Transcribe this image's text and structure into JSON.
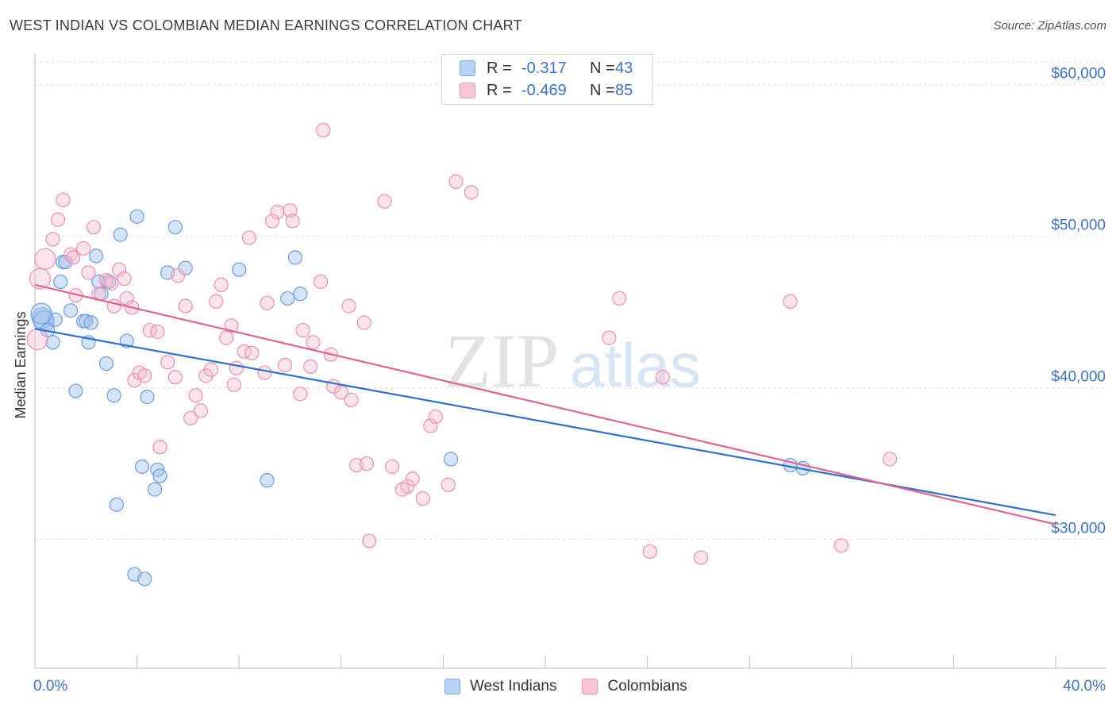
{
  "title": "WEST INDIAN VS COLOMBIAN MEDIAN EARNINGS CORRELATION CHART",
  "source": "Source: ZipAtlas.com",
  "watermark": {
    "zip": "ZIP",
    "atlas": "atlas"
  },
  "legend_top": [
    {
      "r_label": "R =",
      "r_value": "-0.317",
      "n_label": "N =",
      "n_value": "43",
      "fill": "#b9d1f2",
      "stroke": "#7aa7e6"
    },
    {
      "r_label": "R =",
      "r_value": "-0.469",
      "n_label": "N =",
      "n_value": "85",
      "fill": "#f9c6d6",
      "stroke": "#ef94b3"
    }
  ],
  "legend_bottom": [
    {
      "label": "West Indians",
      "fill": "#b9d1f2",
      "stroke": "#7aa7e6"
    },
    {
      "label": "Colombians",
      "fill": "#f9c6d6",
      "stroke": "#ef94b3"
    }
  ],
  "chart_data": {
    "type": "scatter",
    "ylabel": "Median Earnings",
    "xlim": [
      0,
      40
    ],
    "ylim": [
      21500,
      61500
    ],
    "x_tick_labels": [
      "0.0%",
      "40.0%"
    ],
    "y_ticks": [
      {
        "value": 30000,
        "label": "$30,000"
      },
      {
        "value": 40000,
        "label": "$40,000"
      },
      {
        "value": 50000,
        "label": "$50,000"
      },
      {
        "value": 60000,
        "label": "$60,000"
      }
    ],
    "grid": true,
    "legend_position": "top-center",
    "series": [
      {
        "name": "West Indians",
        "color": "#6a9ee0",
        "fill": "rgba(160,193,238,0.45)",
        "line_color": "#2f6fcf",
        "trend": [
          [
            0,
            43900
          ],
          [
            40,
            31600
          ]
        ],
        "points": [
          [
            0.3,
            44600
          ],
          [
            0.35,
            44400
          ],
          [
            0.5,
            43800
          ],
          [
            0.7,
            43000
          ],
          [
            0.8,
            44500
          ],
          [
            1.0,
            47000
          ],
          [
            1.1,
            48300
          ],
          [
            1.4,
            45100
          ],
          [
            1.6,
            39800
          ],
          [
            1.9,
            44400
          ],
          [
            2.0,
            44400
          ],
          [
            2.1,
            43000
          ],
          [
            2.2,
            44300
          ],
          [
            2.4,
            48700
          ],
          [
            2.5,
            47000
          ],
          [
            2.6,
            46200
          ],
          [
            2.8,
            41600
          ],
          [
            2.9,
            47000
          ],
          [
            3.1,
            39500
          ],
          [
            3.2,
            32300
          ],
          [
            3.35,
            50100
          ],
          [
            3.6,
            43100
          ],
          [
            3.9,
            27700
          ],
          [
            4.0,
            51300
          ],
          [
            4.2,
            34800
          ],
          [
            4.3,
            27400
          ],
          [
            4.4,
            39400
          ],
          [
            4.7,
            33300
          ],
          [
            4.8,
            34600
          ],
          [
            4.9,
            34200
          ],
          [
            5.2,
            47600
          ],
          [
            5.5,
            50600
          ],
          [
            5.9,
            47900
          ],
          [
            8.0,
            47800
          ],
          [
            9.1,
            33900
          ],
          [
            9.9,
            45900
          ],
          [
            10.2,
            48600
          ],
          [
            10.4,
            46200
          ],
          [
            16.3,
            35300
          ],
          [
            29.6,
            34900
          ],
          [
            30.1,
            34700
          ],
          [
            0.25,
            44900
          ],
          [
            1.2,
            48300
          ]
        ]
      },
      {
        "name": "Colombians",
        "color": "#ee8fb0",
        "fill": "rgba(246,184,205,0.40)",
        "line_color": "#e0648f",
        "trend": [
          [
            0,
            46800
          ],
          [
            40,
            31000
          ]
        ],
        "points": [
          [
            0.1,
            43200
          ],
          [
            0.2,
            47200
          ],
          [
            0.4,
            48500
          ],
          [
            0.7,
            49800
          ],
          [
            0.9,
            51100
          ],
          [
            1.1,
            52400
          ],
          [
            1.4,
            48800
          ],
          [
            1.6,
            46100
          ],
          [
            1.9,
            49200
          ],
          [
            2.1,
            47600
          ],
          [
            2.3,
            50600
          ],
          [
            2.5,
            46200
          ],
          [
            2.8,
            47100
          ],
          [
            3.0,
            46900
          ],
          [
            3.1,
            45400
          ],
          [
            3.3,
            47800
          ],
          [
            3.5,
            47200
          ],
          [
            3.6,
            45900
          ],
          [
            3.8,
            45300
          ],
          [
            3.9,
            40500
          ],
          [
            4.1,
            41000
          ],
          [
            4.3,
            40800
          ],
          [
            4.5,
            43800
          ],
          [
            4.8,
            43700
          ],
          [
            4.9,
            36100
          ],
          [
            5.2,
            41700
          ],
          [
            5.5,
            40700
          ],
          [
            5.6,
            47400
          ],
          [
            5.9,
            45400
          ],
          [
            6.1,
            38000
          ],
          [
            6.3,
            39500
          ],
          [
            6.5,
            38500
          ],
          [
            6.7,
            40800
          ],
          [
            6.9,
            41200
          ],
          [
            7.1,
            45700
          ],
          [
            7.3,
            46800
          ],
          [
            7.5,
            43300
          ],
          [
            7.7,
            44100
          ],
          [
            7.8,
            40200
          ],
          [
            7.9,
            41300
          ],
          [
            8.2,
            42400
          ],
          [
            8.4,
            49900
          ],
          [
            8.5,
            42300
          ],
          [
            9.0,
            41000
          ],
          [
            9.1,
            45600
          ],
          [
            9.3,
            51000
          ],
          [
            9.5,
            51600
          ],
          [
            9.8,
            41500
          ],
          [
            10.0,
            51700
          ],
          [
            10.1,
            51000
          ],
          [
            10.4,
            39600
          ],
          [
            10.5,
            43800
          ],
          [
            10.8,
            41400
          ],
          [
            10.9,
            43000
          ],
          [
            11.2,
            47000
          ],
          [
            11.3,
            57000
          ],
          [
            11.6,
            42200
          ],
          [
            11.7,
            40100
          ],
          [
            12.0,
            39700
          ],
          [
            12.3,
            45400
          ],
          [
            12.4,
            39200
          ],
          [
            12.6,
            34900
          ],
          [
            12.9,
            44300
          ],
          [
            13.0,
            35000
          ],
          [
            13.1,
            29900
          ],
          [
            13.7,
            52300
          ],
          [
            14.0,
            34800
          ],
          [
            14.4,
            33300
          ],
          [
            14.6,
            33500
          ],
          [
            14.8,
            34000
          ],
          [
            15.2,
            32700
          ],
          [
            15.5,
            37500
          ],
          [
            15.7,
            38100
          ],
          [
            16.2,
            33600
          ],
          [
            16.5,
            53600
          ],
          [
            17.1,
            52900
          ],
          [
            22.5,
            43300
          ],
          [
            22.9,
            45900
          ],
          [
            24.1,
            29200
          ],
          [
            24.6,
            40700
          ],
          [
            26.1,
            28800
          ],
          [
            29.6,
            45700
          ],
          [
            31.6,
            29600
          ],
          [
            33.5,
            35300
          ],
          [
            1.5,
            48600
          ]
        ]
      }
    ]
  }
}
